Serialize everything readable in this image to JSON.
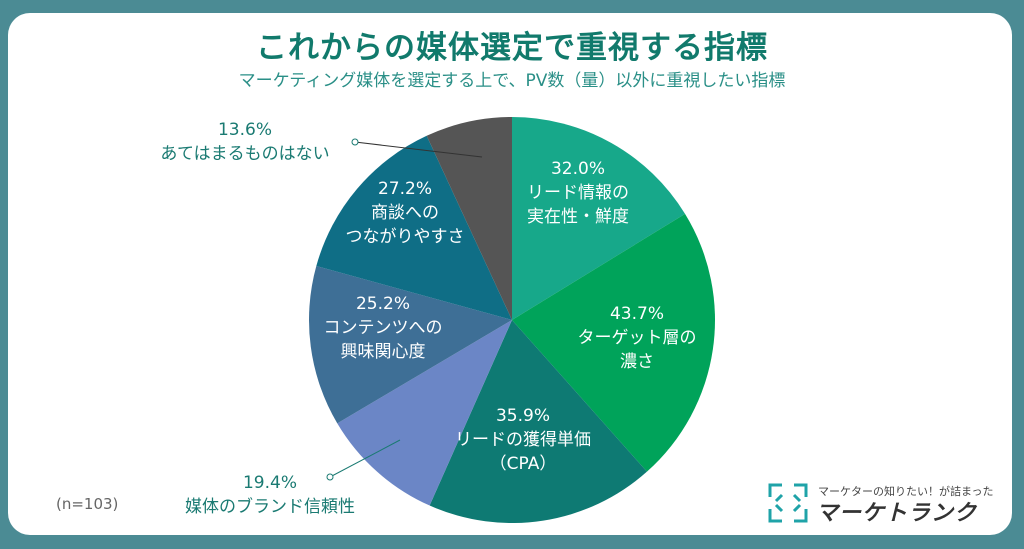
{
  "chart_data": {
    "type": "pie",
    "title": "これからの媒体選定で重視する指標",
    "subtitle": "マーケティング媒体を選定する上で、PV数（量）以外に重視したい指標",
    "note": "(n=103)",
    "start": "top",
    "direction": "clockwise",
    "slices": [
      {
        "label": "リード情報の実在性・鮮度",
        "lines": [
          "32.0%",
          "リード情報の",
          "実在性・鮮度"
        ],
        "value": 32.0,
        "color": "#17a88a"
      },
      {
        "label": "ターゲット層の濃さ",
        "lines": [
          "43.7%",
          "ターゲット層の",
          "濃さ"
        ],
        "value": 43.7,
        "color": "#00a35a"
      },
      {
        "label": "リードの獲得単価（CPA）",
        "lines": [
          "35.9%",
          "リードの獲得単価",
          "（CPA）"
        ],
        "value": 35.9,
        "color": "#0e7a73"
      },
      {
        "label": "媒体のブランド信頼性",
        "lines": [
          "19.4%",
          "媒体のブランド信頼性"
        ],
        "value": 19.4,
        "color": "#6b86c6"
      },
      {
        "label": "コンテンツへの興味関心度",
        "lines": [
          "25.2%",
          "コンテンツへの",
          "興味関心度"
        ],
        "value": 25.2,
        "color": "#3e6f96"
      },
      {
        "label": "商談へのつながりやすさ",
        "lines": [
          "27.2%",
          "商談への",
          "つながりやすさ"
        ],
        "value": 27.2,
        "color": "#0f6e86"
      },
      {
        "label": "あてはまるものはない",
        "lines": [
          "13.6%",
          "あてはまるものはない"
        ],
        "value": 13.6,
        "color": "#555555"
      }
    ]
  },
  "logo": {
    "tagline": "マーケターの知りたい！が詰まった",
    "name": "マーケトランク",
    "color": "#1fa3a8"
  }
}
